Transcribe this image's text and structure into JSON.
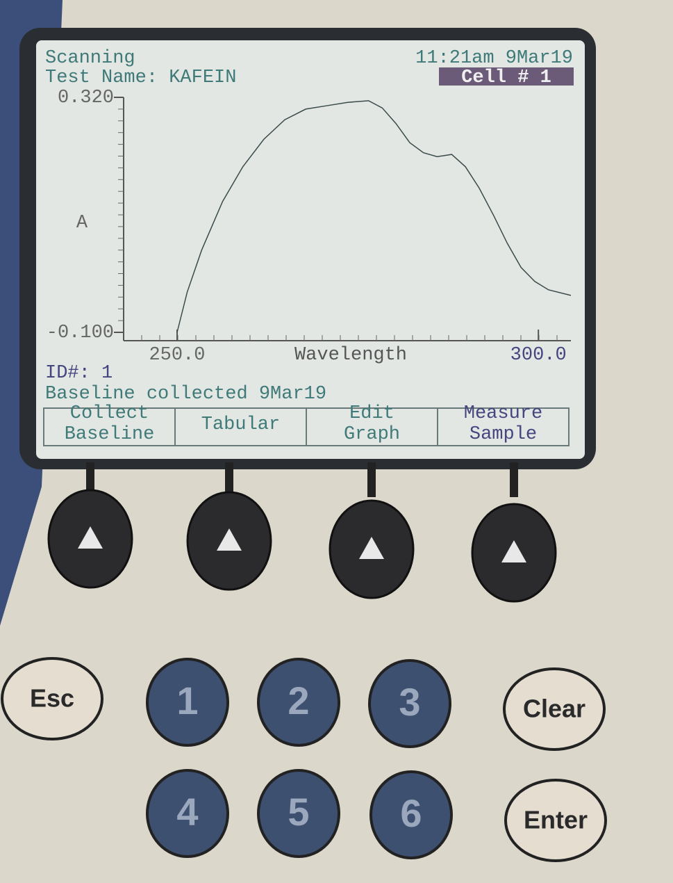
{
  "screen": {
    "status": "Scanning",
    "test_name": "Test Name: KAFEIN",
    "clock": "11:21am 9Mar19",
    "cell": "Cell # 1",
    "id": "ID#: 1",
    "baseline_note": "Baseline collected 9Mar19",
    "softkeys": [
      [
        "Collect",
        "Baseline"
      ],
      [
        "Tabular"
      ],
      [
        "Edit",
        "Graph"
      ],
      [
        "Measure",
        "Sample"
      ]
    ]
  },
  "chart_data": {
    "type": "line",
    "xlabel": "Wavelength",
    "ylabel": "A",
    "xlim": [
      242.6,
      304.5
    ],
    "ylim": [
      -0.1,
      0.32
    ],
    "xticks": [
      {
        "value": 250,
        "label": "250.0"
      },
      {
        "value": 300,
        "label": "300.0"
      }
    ],
    "yticks": [
      {
        "value": 0.32,
        "label": "0.320"
      },
      {
        "value": -0.1,
        "label": "-0.100"
      }
    ],
    "color": "#3a4a4a",
    "x": [
      250,
      251.4,
      253.4,
      256.3,
      259.1,
      262,
      264.9,
      267.8,
      270.7,
      273.6,
      276.5,
      278.4,
      280.3,
      282.2,
      284.1,
      286,
      288,
      289.9,
      291.8,
      293.8,
      295.7,
      297.6,
      299.5,
      301.4,
      304.5
    ],
    "values": [
      -0.1,
      -0.028,
      0.047,
      0.134,
      0.196,
      0.245,
      0.28,
      0.299,
      0.305,
      0.311,
      0.314,
      0.301,
      0.273,
      0.239,
      0.221,
      0.214,
      0.218,
      0.196,
      0.158,
      0.109,
      0.059,
      0.016,
      -0.009,
      -0.024,
      -0.034
    ]
  },
  "keypad": {
    "keys": [
      "Esc",
      "1",
      "2",
      "3",
      "Clear",
      "4",
      "5",
      "6",
      "Enter"
    ]
  }
}
